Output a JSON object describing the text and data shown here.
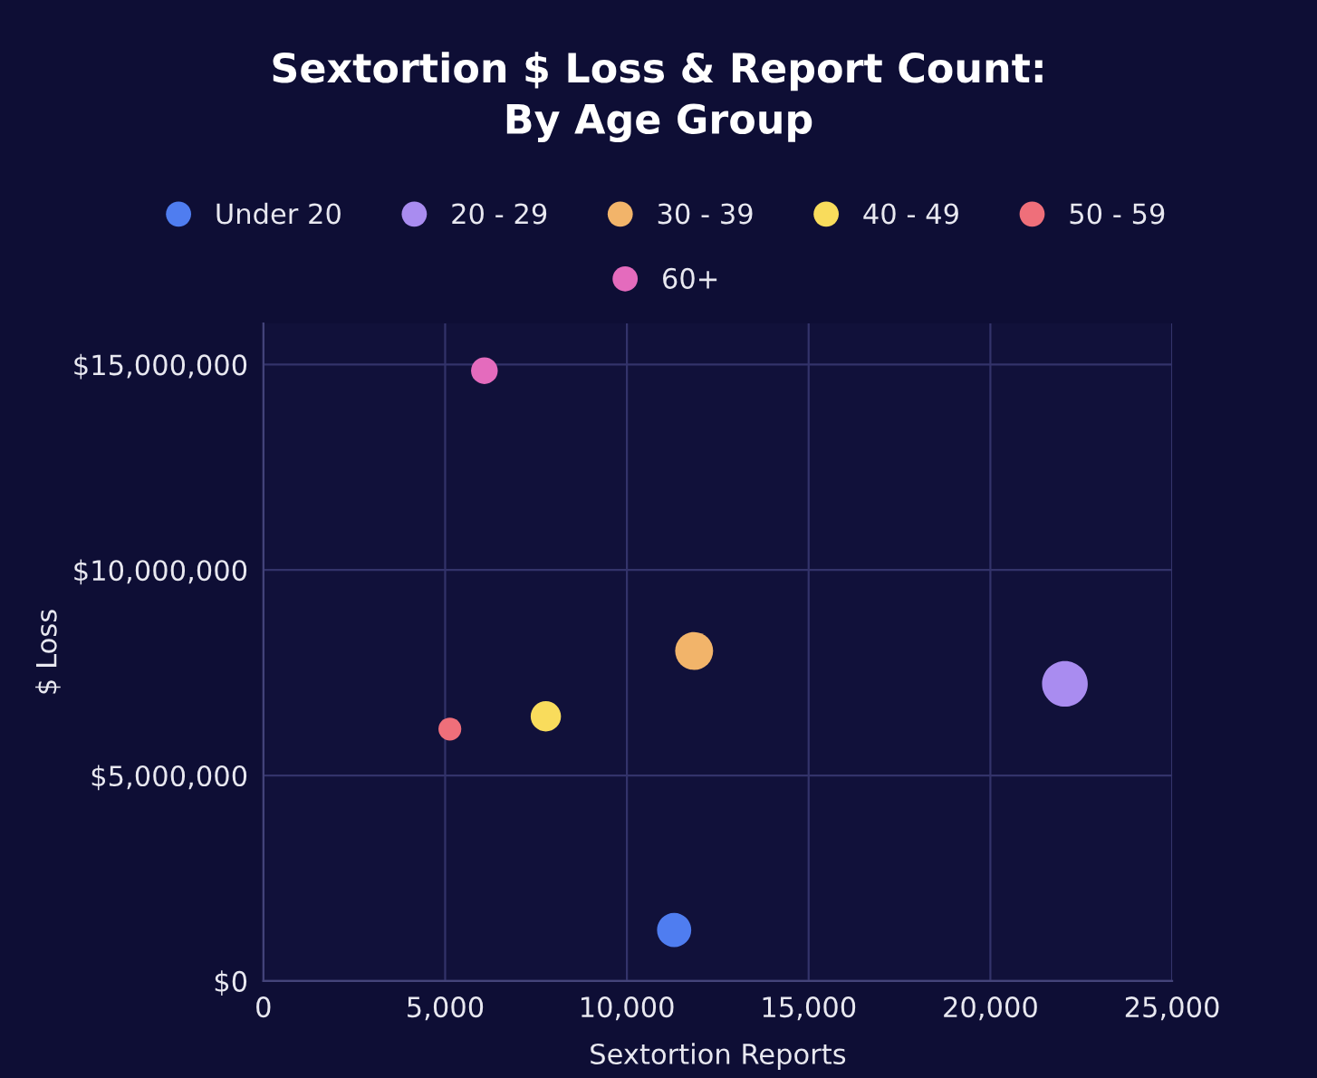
{
  "chart_data": {
    "type": "bubble",
    "title": "Sextortion $ Loss & Report Count:\nBy Age Group",
    "xlabel": "Sextortion Reports",
    "ylabel": "$ Loss",
    "xlim": [
      0,
      25000
    ],
    "xticks": [
      {
        "value": 0,
        "label": "0"
      },
      {
        "value": 5000,
        "label": "5,000"
      },
      {
        "value": 10000,
        "label": "10,000"
      },
      {
        "value": 15000,
        "label": "15,000"
      },
      {
        "value": 20000,
        "label": "20,000"
      },
      {
        "value": 25000,
        "label": "25,000"
      }
    ],
    "ylim": [
      0,
      16000000
    ],
    "yticks": [
      {
        "value": 0,
        "label": "$0"
      },
      {
        "value": 5000000,
        "label": "$5,000,000"
      },
      {
        "value": 10000000,
        "label": "$10,000,000"
      },
      {
        "value": 15000000,
        "label": "$15,000,000"
      }
    ],
    "grid": true,
    "legend": "top",
    "marker": "circle",
    "series": [
      {
        "name": "Under 20",
        "color": "#4f7df0",
        "x": [
          11300
        ],
        "values": [
          1240000
        ],
        "sizes": [
          0.56
        ]
      },
      {
        "name": "20 - 29",
        "color": "#a98cf0",
        "x": [
          22050
        ],
        "values": [
          7230000
        ],
        "sizes": [
          1
        ]
      },
      {
        "name": "30 - 39",
        "color": "#f2b46a",
        "x": [
          11850
        ],
        "values": [
          8030000
        ],
        "sizes": [
          0.69
        ]
      },
      {
        "name": "40 - 49",
        "color": "#f9dc5c",
        "x": [
          7770
        ],
        "values": [
          6440000
        ],
        "sizes": [
          0.44
        ]
      },
      {
        "name": "50 - 59",
        "color": "#ef6f7a",
        "x": [
          5130
        ],
        "values": [
          6130000
        ],
        "sizes": [
          0.25
        ]
      },
      {
        "name": "60+",
        "color": "#e46bbd",
        "x": [
          6080
        ],
        "values": [
          14850000
        ],
        "sizes": [
          0.34
        ]
      }
    ]
  }
}
